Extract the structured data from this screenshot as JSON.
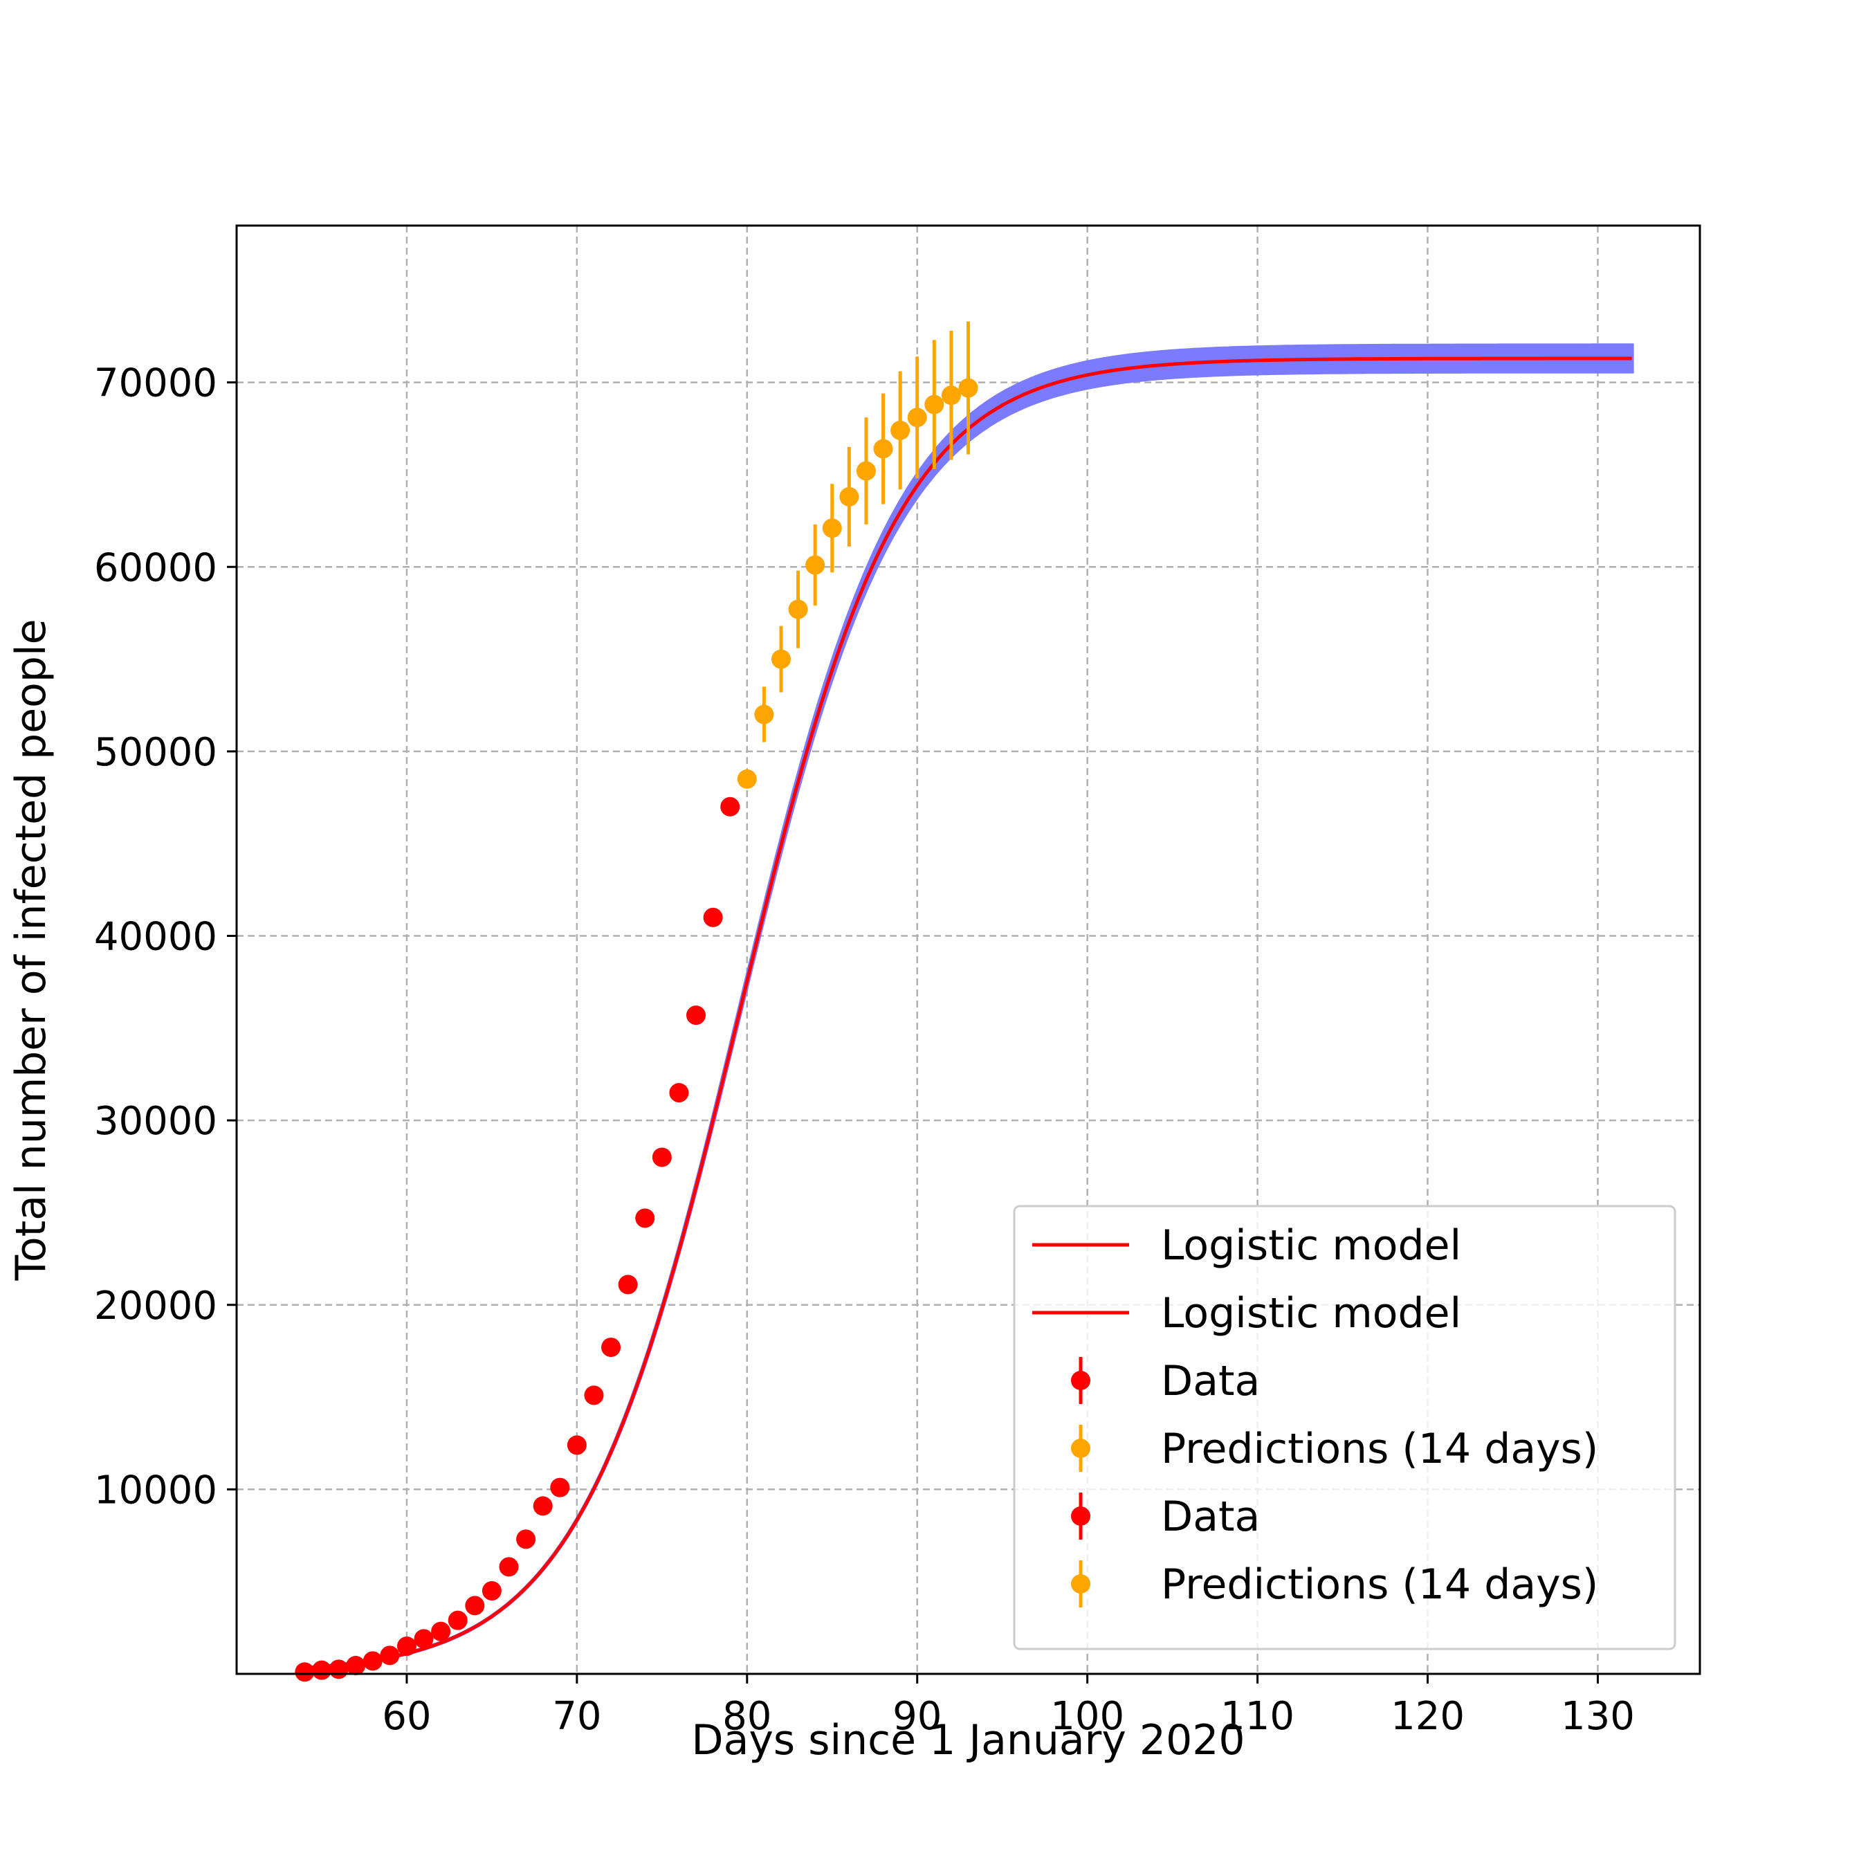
{
  "chart_data": {
    "type": "line",
    "title": "",
    "xlabel": "Days since 1 January 2020",
    "ylabel": "Total number of infected people",
    "xlim": [
      50,
      136
    ],
    "ylim": [
      0,
      78500
    ],
    "grid": true,
    "xticks": [
      60,
      70,
      80,
      90,
      100,
      110,
      120,
      130
    ],
    "yticks": [
      10000,
      20000,
      30000,
      40000,
      50000,
      60000,
      70000
    ],
    "xtick_labels": [
      "60",
      "70",
      "80",
      "90",
      "100",
      "110",
      "120",
      "130"
    ],
    "ytick_labels": [
      "10000",
      "20000",
      "30000",
      "40000",
      "50000",
      "60000",
      "70000"
    ],
    "logistic_model": {
      "name": "Logistic model",
      "color": "#ff0000",
      "x_start": 54,
      "x_end": 132,
      "a": 4.7,
      "b": 79.5,
      "c": 71300
    },
    "uncertainty_band": {
      "color": "#7b7bff",
      "half_width_plateau": 700
    },
    "data_series": {
      "name": "Data",
      "color": "#ff0000",
      "x": [
        54,
        55,
        56,
        57,
        58,
        59,
        60,
        61,
        62,
        63,
        64,
        65,
        66,
        67,
        68,
        69,
        70,
        71,
        72,
        73,
        74,
        75,
        76,
        77,
        78,
        79
      ],
      "y": [
        100,
        200,
        250,
        450,
        700,
        1000,
        1500,
        1900,
        2300,
        2900,
        3700,
        4500,
        5800,
        7300,
        9100,
        10100,
        12400,
        15100,
        17700,
        21100,
        24700,
        28000,
        31500,
        35700,
        41000,
        47000
      ]
    },
    "predictions_series": {
      "name": "Predictions (14 days)",
      "color": "#ffa500",
      "x": [
        80,
        81,
        82,
        83,
        84,
        85,
        86,
        87,
        88,
        89,
        90,
        91,
        92,
        93
      ],
      "y": [
        48500,
        52000,
        55000,
        57700,
        60100,
        62100,
        63800,
        65200,
        66400,
        67400,
        68100,
        68800,
        69300,
        69700
      ],
      "err": [
        500,
        1500,
        1800,
        2100,
        2200,
        2400,
        2700,
        2900,
        3000,
        3200,
        3300,
        3500,
        3500,
        3600
      ]
    },
    "legend": {
      "position": "bottom-right",
      "entries": [
        "Logistic model",
        "Logistic model",
        "Data",
        "Predictions (14 days)",
        "Data",
        "Predictions (14 days)"
      ]
    }
  }
}
